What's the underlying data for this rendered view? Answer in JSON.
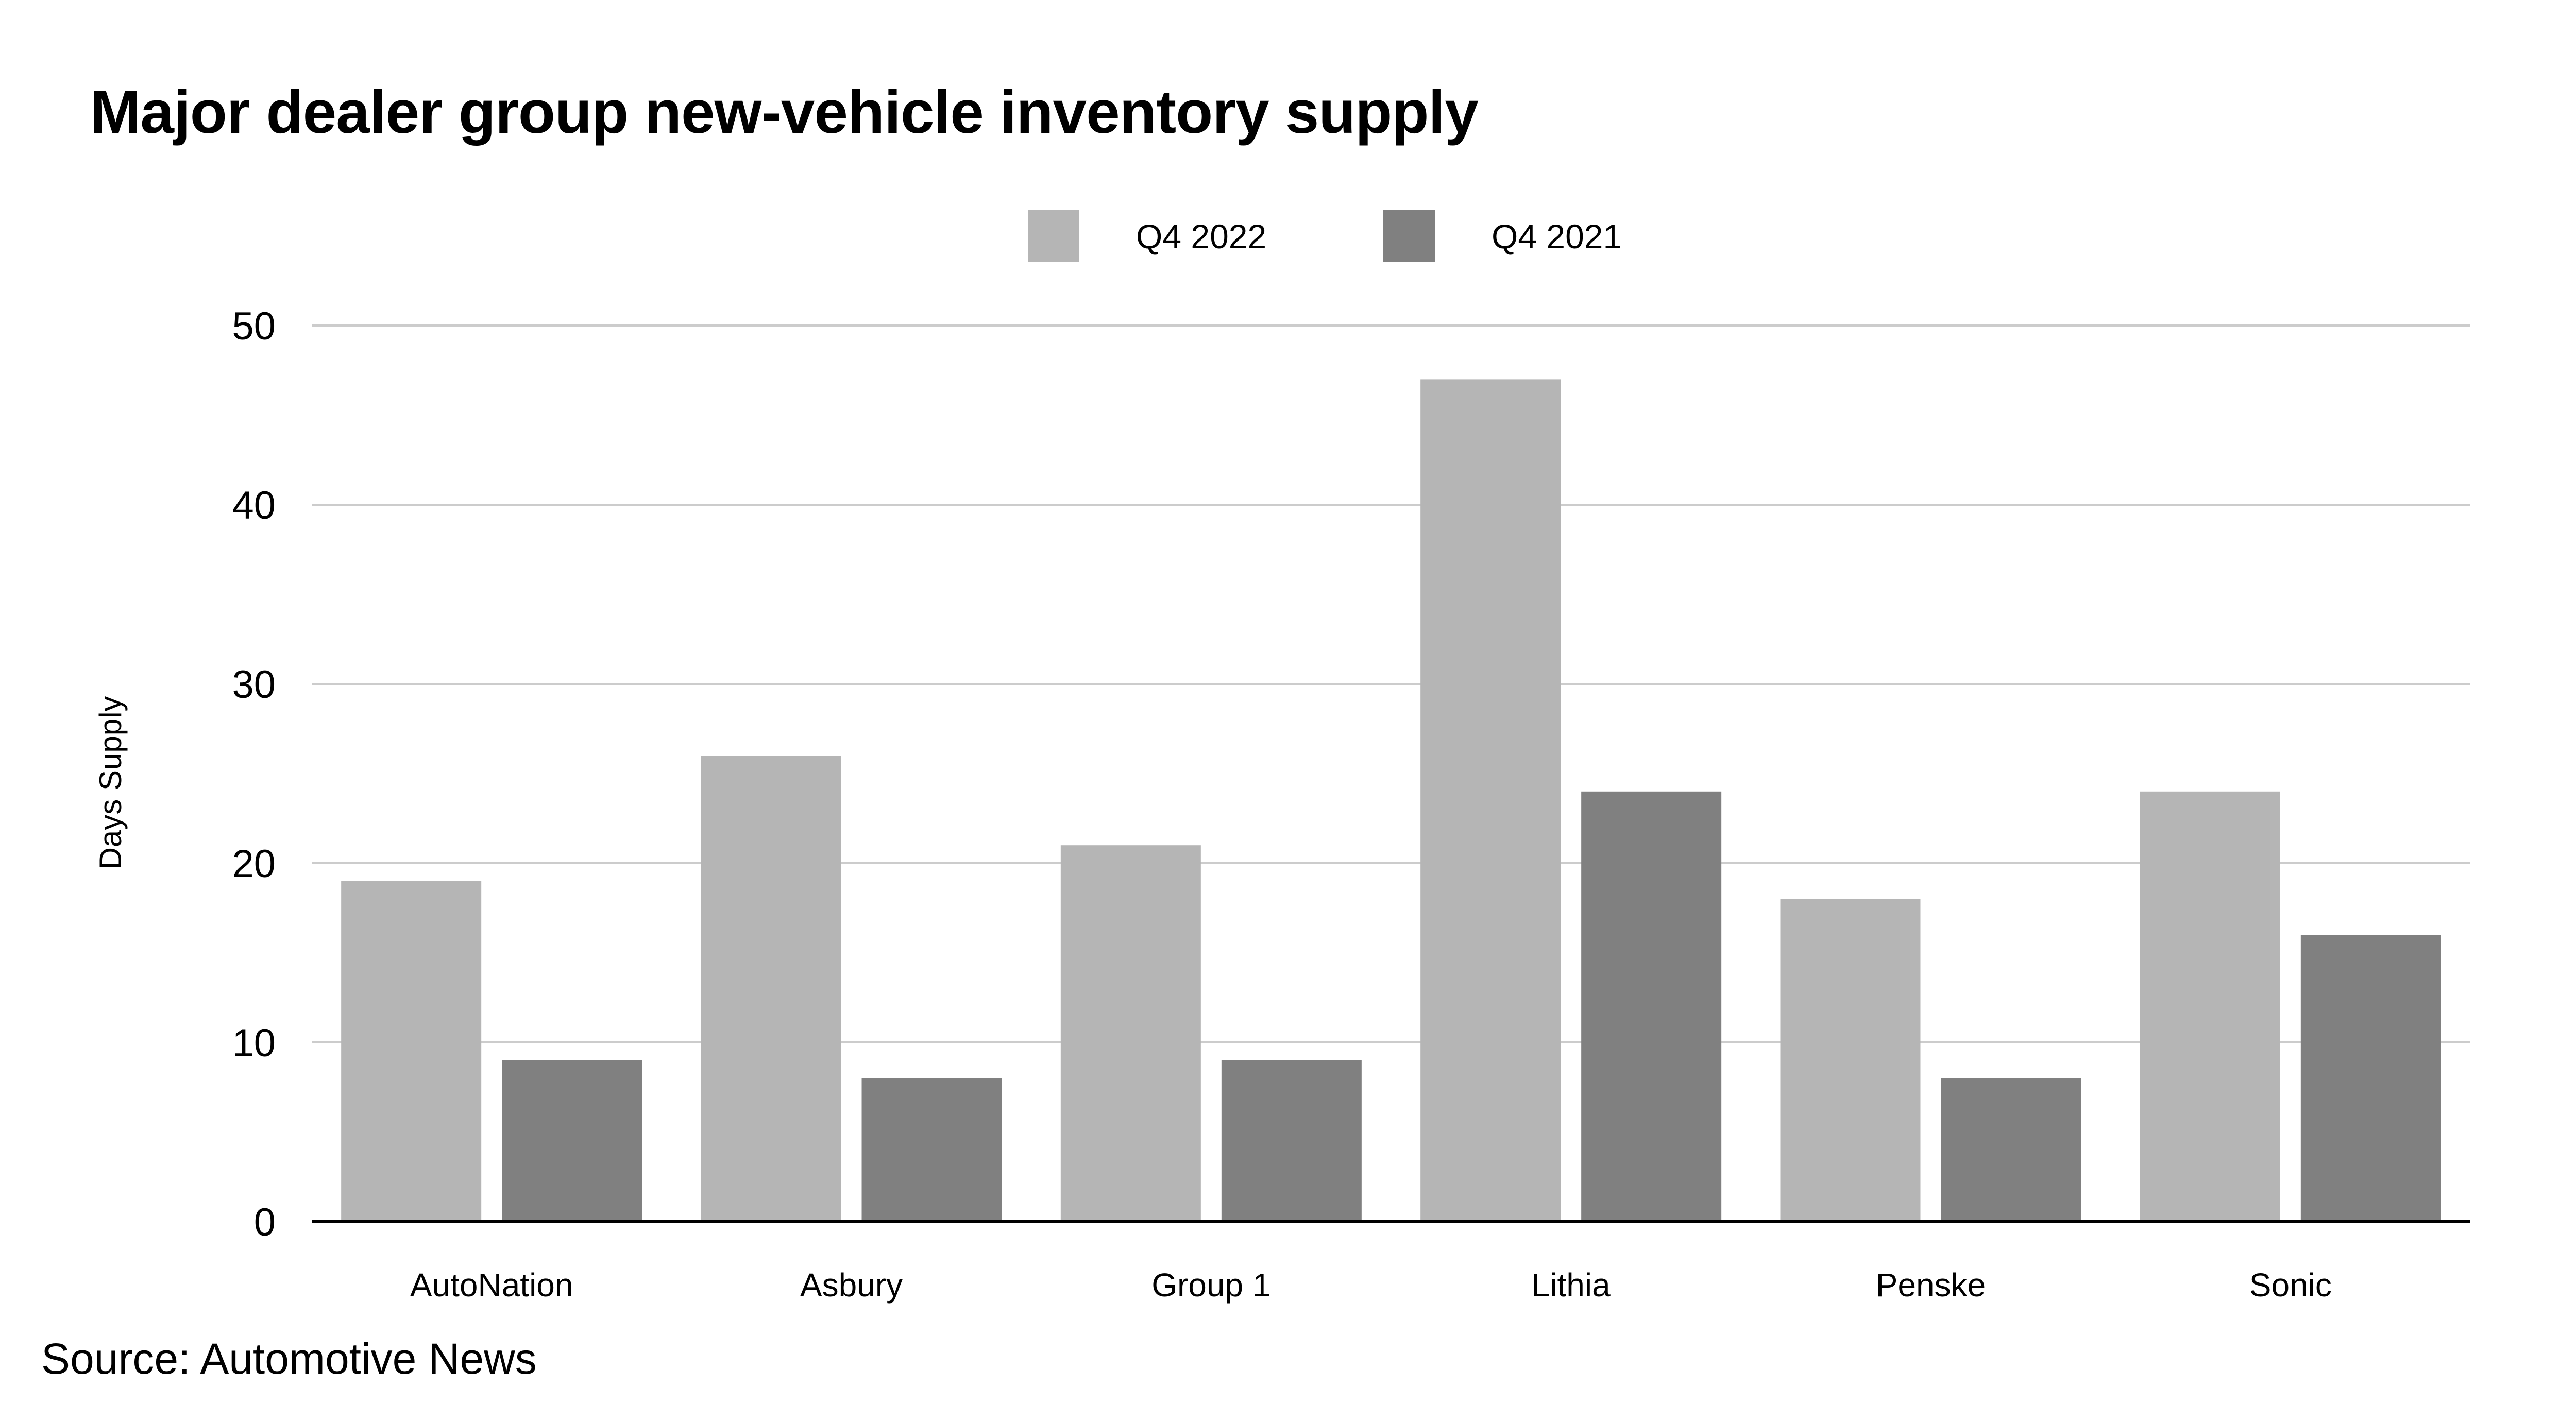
{
  "chart_data": {
    "type": "bar",
    "title": "Major dealer group new-vehicle inventory supply",
    "xlabel": "",
    "ylabel": "Days Supply",
    "ylim": [
      0,
      50
    ],
    "yticks": [
      0,
      10,
      20,
      30,
      40,
      50
    ],
    "grid": true,
    "legend_position": "top-center",
    "categories": [
      "AutoNation",
      "Asbury",
      "Group 1",
      "Lithia",
      "Penske",
      "Sonic"
    ],
    "series": [
      {
        "name": "Q4 2022",
        "color": "#b5b5b5",
        "values": [
          19,
          26,
          21,
          47,
          18,
          24
        ]
      },
      {
        "name": "Q4 2021",
        "color": "#808080",
        "values": [
          9,
          8,
          9,
          24,
          8,
          16
        ]
      }
    ],
    "source": "Source: Automotive News"
  }
}
